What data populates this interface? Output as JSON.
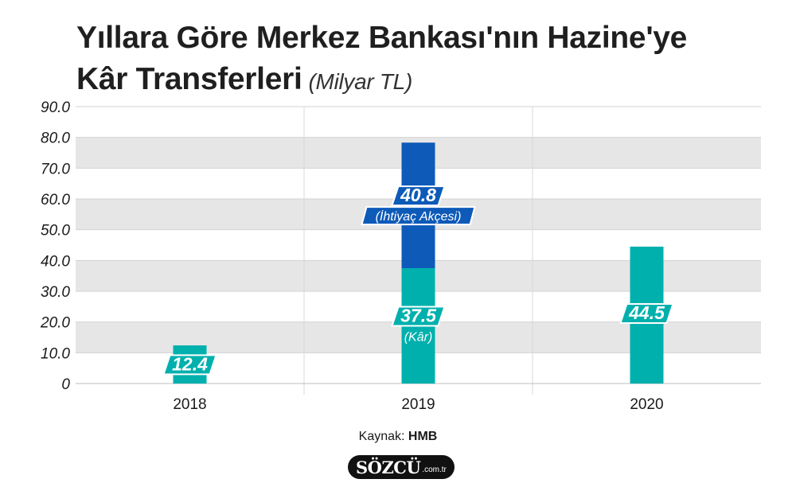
{
  "title": {
    "line1": "Yıllara Göre Merkez Bankası'nın Hazine'ye",
    "line2": "Kâr Transferleri",
    "unit": "(Milyar TL)"
  },
  "chart_data": {
    "type": "bar",
    "stacked": true,
    "categories": [
      "2018",
      "2019",
      "2020"
    ],
    "series": [
      {
        "name": "Kâr",
        "values": [
          12.4,
          37.5,
          44.5
        ],
        "color": "#00b0ad"
      },
      {
        "name": "İhtiyaç Akçesi",
        "values": [
          0,
          40.8,
          0
        ],
        "color": "#0d5ab8"
      }
    ],
    "data_labels": [
      {
        "category": "2018",
        "series": "Kâr",
        "value": "12.4"
      },
      {
        "category": "2019",
        "series": "Kâr",
        "value": "37.5",
        "sublabel": "(Kâr)"
      },
      {
        "category": "2019",
        "series": "İhtiyaç Akçesi",
        "value": "40.8",
        "sublabel": "(İhtiyaç Akçesi)"
      },
      {
        "category": "2020",
        "series": "Kâr",
        "value": "44.5"
      }
    ],
    "yticks": [
      "0",
      "10.0",
      "20.0",
      "30.0",
      "40.0",
      "50.0",
      "60.0",
      "70.0",
      "80.0",
      "90.0"
    ],
    "ylim": [
      0,
      90
    ],
    "grid": "alternating horizontal bands",
    "band_color": "#e6e6e6"
  },
  "source": {
    "label": "Kaynak:",
    "value": "HMB"
  },
  "logo": {
    "brand": "SÖZCÜ",
    "tld": ".com.tr"
  }
}
